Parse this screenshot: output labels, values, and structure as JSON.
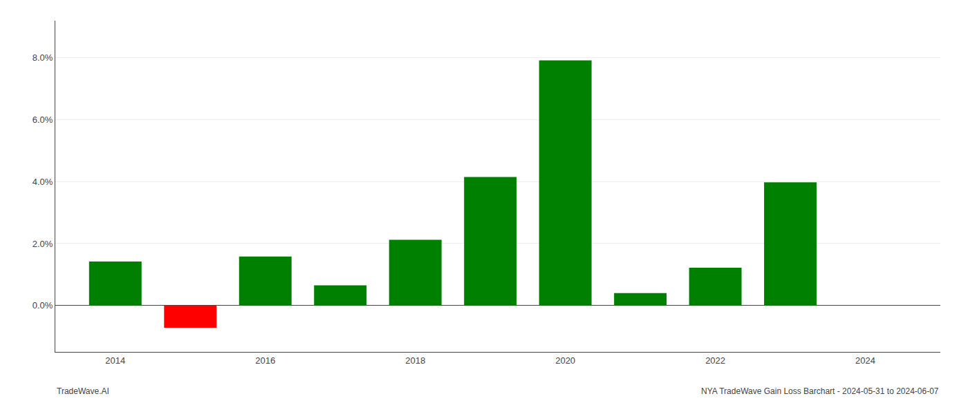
{
  "chart_data": {
    "type": "bar",
    "x": [
      2014,
      2015,
      2016,
      2017,
      2018,
      2019,
      2020,
      2021,
      2022,
      2023
    ],
    "values": [
      1.42,
      -0.72,
      1.58,
      0.65,
      2.12,
      4.15,
      7.92,
      0.4,
      1.22,
      3.98
    ],
    "colors": [
      "#008000",
      "#ff0000",
      "#008000",
      "#008000",
      "#008000",
      "#008000",
      "#008000",
      "#008000",
      "#008000",
      "#008000"
    ],
    "xlim": [
      2013.2,
      2025.0
    ],
    "xticks": [
      2014,
      2016,
      2018,
      2020,
      2022,
      2024
    ],
    "ylim": [
      -1.5,
      9.2
    ],
    "yticks": [
      {
        "value": 0.0,
        "label": "0.0%"
      },
      {
        "value": 2.0,
        "label": "2.0%"
      },
      {
        "value": 4.0,
        "label": "4.0%"
      },
      {
        "value": 6.0,
        "label": "6.0%"
      },
      {
        "value": 8.0,
        "label": "8.0%"
      }
    ],
    "grid": true,
    "annotations": [
      "TradeWave.AI",
      "NYA TradeWave Gain Loss Barchart - 2024-05-31 to 2024-06-07"
    ]
  }
}
